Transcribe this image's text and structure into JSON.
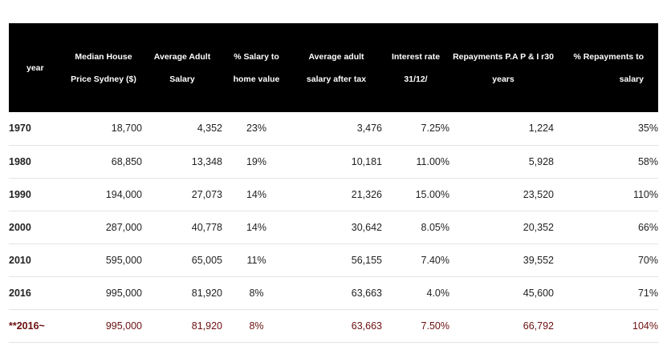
{
  "table": {
    "headers": [
      {
        "lines": [
          "year"
        ]
      },
      {
        "lines": [
          "Median House",
          "Price Sydney ($)"
        ]
      },
      {
        "lines": [
          "Average Adult",
          "Salary"
        ]
      },
      {
        "lines": [
          "% Salary to",
          "home value"
        ]
      },
      {
        "lines": [
          "Average adult",
          "salary after tax"
        ]
      },
      {
        "lines": [
          "Interest rate",
          "31/12/"
        ]
      },
      {
        "lines": [
          "Repayments P.A P & I  r30",
          "years"
        ]
      },
      {
        "lines": [
          "% Repayments to salary"
        ]
      }
    ],
    "rows": [
      {
        "cells": [
          "1970",
          "18,700",
          "4,352",
          "23%",
          "3,476",
          "7.25%",
          "1,224",
          "35%"
        ]
      },
      {
        "cells": [
          "1980",
          "68,850",
          "13,348",
          "19%",
          "10,181",
          "11.00%",
          "5,928",
          "58%"
        ]
      },
      {
        "cells": [
          "1990",
          "194,000",
          "27,073",
          "14%",
          "21,326",
          "15.00%",
          "23,520",
          "110%"
        ]
      },
      {
        "cells": [
          "2000",
          "287,000",
          "40,778",
          "14%",
          "30,642",
          "8.05%",
          "20,352",
          "66%"
        ]
      },
      {
        "cells": [
          "2010",
          "595,000",
          "65,005",
          "11%",
          "56,155",
          "7.40%",
          "39,552",
          "70%"
        ]
      },
      {
        "cells": [
          "2016",
          "995,000",
          "81,920",
          "8%",
          "63,663",
          "4.0%",
          "45,600",
          "71%"
        ]
      },
      {
        "cells": [
          "**2016~",
          "995,000",
          "81,920",
          "8%",
          "63,663",
          "7.50%",
          "66,792",
          "104%"
        ]
      }
    ],
    "highlight_color": "#6b0f0f",
    "header_bg": "#000000"
  }
}
